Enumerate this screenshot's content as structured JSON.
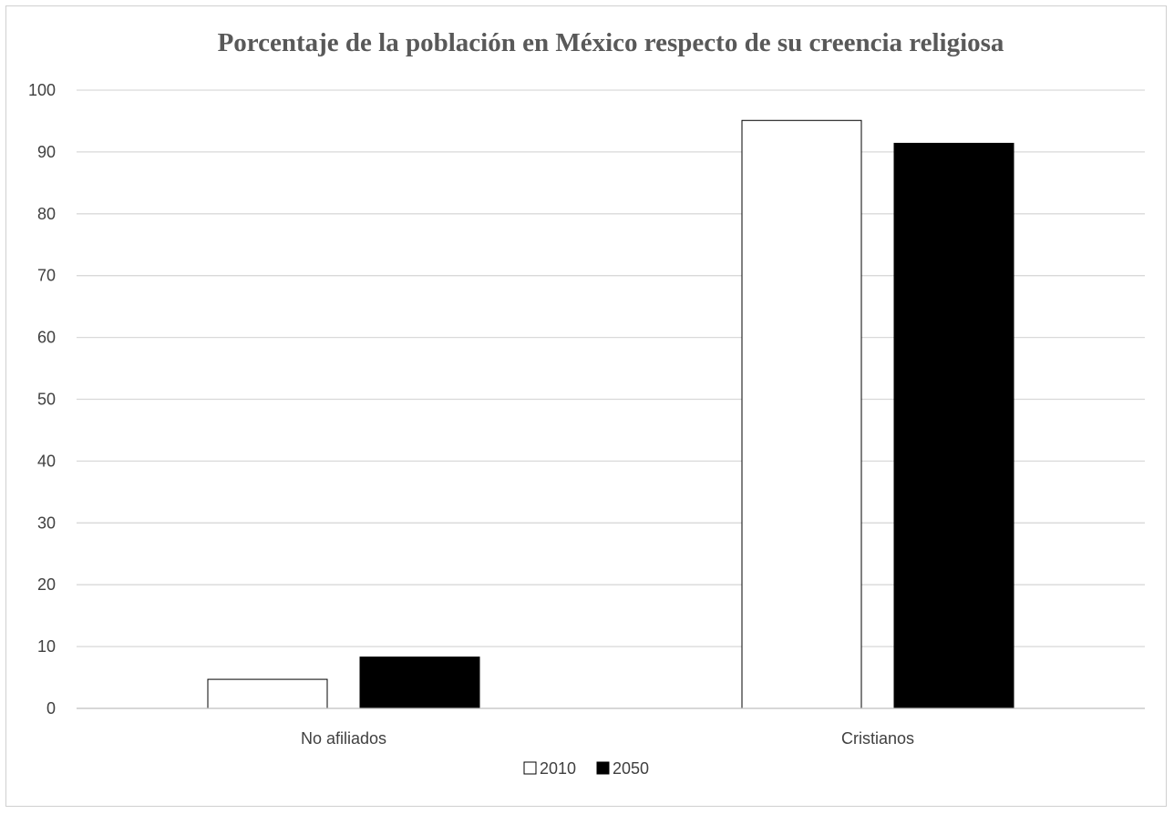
{
  "chart_data": {
    "type": "bar",
    "title": "Porcentaje de la población en México respecto de su creencia religiosa",
    "xlabel": "",
    "ylabel": "",
    "categories": [
      "No afiliados",
      "Cristianos"
    ],
    "series": [
      {
        "name": "2010",
        "values": [
          4.7,
          95.1
        ],
        "fill": "#ffffff",
        "stroke": "#000000"
      },
      {
        "name": "2050",
        "values": [
          8.3,
          91.4
        ],
        "fill": "#000000",
        "stroke": "#000000"
      }
    ],
    "ylim": [
      0,
      100
    ],
    "yticks": [
      "0",
      "10",
      "20",
      "30",
      "40",
      "50",
      "60",
      "70",
      "80",
      "90",
      "100"
    ],
    "grid": true,
    "legend_position": "bottom",
    "colors": {
      "gridline": "#d9d9d9",
      "axis": "#bfbfbf",
      "text": "#404040",
      "title": "#595959"
    }
  }
}
